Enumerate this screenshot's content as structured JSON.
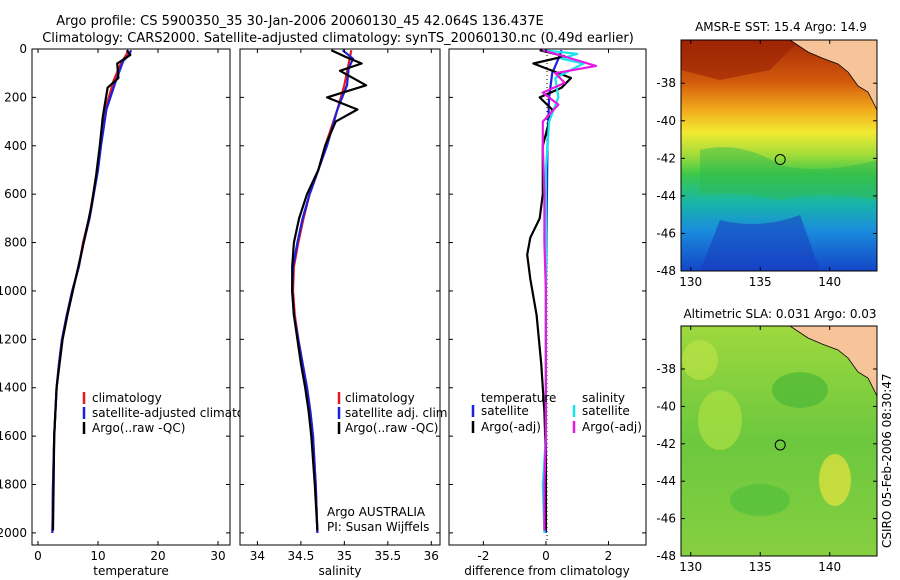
{
  "header": {
    "line1": "Argo profile: CS 5900350_35 30-Jan-2006 20060130_45 42.064S 136.437E",
    "line2": "Climatology: CARS2000. Satellite-adjusted climatology: synTS_20060130.nc (0.49d earlier)"
  },
  "side_text": "CSIRO 05-Feb-2006 08:30:47",
  "colors": {
    "climatology": "#e41a1c",
    "satellite": "#1f1fdf",
    "argo": "#000000",
    "sat_salinity": "#19e3ea",
    "argo_adj_salinity": "#e41ae4",
    "land": "#f7c49a"
  },
  "chart_data": [
    {
      "id": "temperature",
      "type": "line",
      "xlabel": "temperature",
      "xlim": [
        -1,
        32
      ],
      "ylim": [
        2050,
        0
      ],
      "xticks": [
        0,
        10,
        20,
        30
      ],
      "xtick_labels": [
        "0",
        "10",
        "20",
        "30"
      ],
      "yticks": [
        0,
        200,
        400,
        600,
        800,
        1000,
        1200,
        1400,
        1600,
        1800,
        2000
      ],
      "ytick_labels": [
        "0",
        "200",
        "400",
        "600",
        "800",
        "1000",
        "1200",
        "1400",
        "1600",
        "1800",
        "2000"
      ],
      "legend": [
        {
          "label": "climatology",
          "color": "#e41a1c"
        },
        {
          "label": "satellite-adjusted climatology",
          "color": "#1f1fdf"
        },
        {
          "label": "Argo(..raw -QC)",
          "color": "#000000"
        }
      ],
      "series": [
        {
          "name": "climatology",
          "color": "#e41a1c",
          "points": [
            [
              15.0,
              5
            ],
            [
              14.8,
              20
            ],
            [
              13.8,
              60
            ],
            [
              12.6,
              130
            ],
            [
              11.2,
              250
            ],
            [
              10.4,
              400
            ],
            [
              9.9,
              500
            ],
            [
              9.2,
              600
            ],
            [
              8.5,
              700
            ],
            [
              7.5,
              800
            ],
            [
              6.8,
              900
            ],
            [
              5.7,
              1000
            ],
            [
              4.8,
              1100
            ],
            [
              4.0,
              1200
            ],
            [
              3.5,
              1300
            ],
            [
              3.1,
              1400
            ],
            [
              2.9,
              1500
            ],
            [
              2.7,
              1600
            ],
            [
              2.5,
              1800
            ],
            [
              2.4,
              2000
            ]
          ]
        },
        {
          "name": "satellite-adjusted climatology",
          "color": "#1f1fdf",
          "points": [
            [
              15.5,
              5
            ],
            [
              15.3,
              20
            ],
            [
              14.2,
              50
            ],
            [
              13.0,
              130
            ],
            [
              11.4,
              250
            ],
            [
              10.5,
              400
            ],
            [
              10.0,
              500
            ],
            [
              9.3,
              600
            ],
            [
              8.6,
              700
            ],
            [
              7.6,
              800
            ],
            [
              6.8,
              900
            ],
            [
              5.7,
              1000
            ],
            [
              4.8,
              1100
            ],
            [
              4.0,
              1200
            ],
            [
              3.5,
              1300
            ],
            [
              3.1,
              1400
            ],
            [
              2.9,
              1500
            ],
            [
              2.7,
              1600
            ],
            [
              2.5,
              1800
            ],
            [
              2.4,
              2000
            ]
          ]
        },
        {
          "name": "Argo(..raw -QC)",
          "color": "#000000",
          "points": [
            [
              14.8,
              5
            ],
            [
              15.4,
              25
            ],
            [
              13.2,
              60
            ],
            [
              13.4,
              120
            ],
            [
              11.6,
              160
            ],
            [
              10.8,
              280
            ],
            [
              10.3,
              400
            ],
            [
              9.7,
              520
            ],
            [
              8.9,
              650
            ],
            [
              7.8,
              780
            ],
            [
              6.9,
              880
            ],
            [
              5.8,
              1000
            ],
            [
              4.9,
              1100
            ],
            [
              4.1,
              1200
            ],
            [
              3.6,
              1300
            ],
            [
              3.1,
              1400
            ],
            [
              2.9,
              1500
            ],
            [
              2.7,
              1600
            ],
            [
              2.6,
              1800
            ],
            [
              2.5,
              1990
            ]
          ]
        }
      ]
    },
    {
      "id": "salinity",
      "type": "line",
      "xlabel": "salinity",
      "xlim": [
        33.8,
        36.1
      ],
      "ylim": [
        2050,
        0
      ],
      "xticks": [
        34,
        34.5,
        35,
        35.5,
        36
      ],
      "xtick_labels": [
        "34",
        "34.5",
        "35",
        "35.5",
        "36"
      ],
      "yticks": [
        0,
        200,
        400,
        600,
        800,
        1000,
        1200,
        1400,
        1600,
        1800,
        2000
      ],
      "ytick_labels": [
        "",
        "",
        "",
        "",
        "",
        "",
        "",
        "",
        "",
        "",
        ""
      ],
      "legend": [
        {
          "label": "climatology",
          "color": "#e41a1c"
        },
        {
          "label": "satellite adj. clim.",
          "color": "#1f1fdf"
        },
        {
          "label": "Argo(..raw -QC)",
          "color": "#000000"
        }
      ],
      "annotation": {
        "line1": "Argo AUSTRALIA",
        "line2": "PI: Susan Wijffels"
      },
      "series": [
        {
          "name": "climatology",
          "color": "#e41a1c",
          "points": [
            [
              35.08,
              5
            ],
            [
              35.05,
              60
            ],
            [
              35.0,
              150
            ],
            [
              34.92,
              250
            ],
            [
              34.78,
              400
            ],
            [
              34.7,
              500
            ],
            [
              34.6,
              600
            ],
            [
              34.53,
              700
            ],
            [
              34.47,
              800
            ],
            [
              34.42,
              900
            ],
            [
              34.41,
              1000
            ],
            [
              34.43,
              1100
            ],
            [
              34.47,
              1200
            ],
            [
              34.52,
              1300
            ],
            [
              34.57,
              1400
            ],
            [
              34.61,
              1500
            ],
            [
              34.64,
              1600
            ],
            [
              34.67,
              1800
            ],
            [
              34.69,
              2000
            ]
          ]
        },
        {
          "name": "satellite adj. clim.",
          "color": "#1f1fdf",
          "points": [
            [
              34.98,
              5
            ],
            [
              35.1,
              40
            ],
            [
              35.05,
              80
            ],
            [
              35.03,
              150
            ],
            [
              34.92,
              250
            ],
            [
              34.8,
              400
            ],
            [
              34.7,
              500
            ],
            [
              34.6,
              600
            ],
            [
              34.52,
              700
            ],
            [
              34.46,
              800
            ],
            [
              34.41,
              900
            ],
            [
              34.4,
              1000
            ],
            [
              34.42,
              1100
            ],
            [
              34.47,
              1200
            ],
            [
              34.52,
              1300
            ],
            [
              34.57,
              1400
            ],
            [
              34.61,
              1500
            ],
            [
              34.64,
              1600
            ],
            [
              34.67,
              1800
            ],
            [
              34.69,
              2000
            ]
          ]
        },
        {
          "name": "Argo(..raw -QC)",
          "color": "#000000",
          "points": [
            [
              34.85,
              5
            ],
            [
              35.0,
              30
            ],
            [
              35.2,
              60
            ],
            [
              34.95,
              90
            ],
            [
              35.25,
              150
            ],
            [
              34.8,
              200
            ],
            [
              35.15,
              250
            ],
            [
              34.9,
              300
            ],
            [
              34.78,
              400
            ],
            [
              34.7,
              500
            ],
            [
              34.57,
              600
            ],
            [
              34.48,
              700
            ],
            [
              34.42,
              800
            ],
            [
              34.4,
              900
            ],
            [
              34.4,
              1000
            ],
            [
              34.42,
              1100
            ],
            [
              34.46,
              1200
            ],
            [
              34.5,
              1300
            ],
            [
              34.55,
              1400
            ],
            [
              34.59,
              1500
            ],
            [
              34.62,
              1600
            ],
            [
              34.66,
              1800
            ],
            [
              34.69,
              1990
            ]
          ]
        }
      ]
    },
    {
      "id": "difference",
      "type": "line",
      "xlabel": "difference from climatology",
      "xlim": [
        -3.1,
        3.2
      ],
      "ylim": [
        2050,
        0
      ],
      "xticks": [
        -2,
        0,
        2
      ],
      "xtick_labels": [
        "-2",
        "0",
        "2"
      ],
      "yticks": [
        0,
        200,
        400,
        600,
        800,
        1000,
        1200,
        1400,
        1600,
        1800,
        2000
      ],
      "ytick_labels": [
        "",
        "",
        "",
        "",
        "",
        "",
        "",
        "",
        "",
        "",
        ""
      ],
      "legend_left": {
        "title": "temperature",
        "items": [
          {
            "label": "satellite",
            "color": "#1f1fdf"
          },
          {
            "label": "Argo(-adj)",
            "color": "#000000"
          }
        ]
      },
      "legend_right": {
        "title": "salinity",
        "items": [
          {
            "label": "satellite",
            "color": "#19e3ea"
          },
          {
            "label": "Argo(-adj)",
            "color": "#e41ae4"
          }
        ]
      },
      "series": [
        {
          "name": "temperature satellite",
          "color": "#1f1fdf",
          "points": [
            [
              0.5,
              5
            ],
            [
              0.4,
              40
            ],
            [
              0.2,
              100
            ],
            [
              0.1,
              200
            ],
            [
              0.05,
              400
            ],
            [
              0.02,
              700
            ],
            [
              0.0,
              1000
            ],
            [
              0.0,
              2000
            ]
          ]
        },
        {
          "name": "temperature Argo(-adj)",
          "color": "#000000",
          "points": [
            [
              -0.2,
              5
            ],
            [
              0.6,
              30
            ],
            [
              -0.4,
              60
            ],
            [
              0.8,
              120
            ],
            [
              0.5,
              160
            ],
            [
              -0.2,
              200
            ],
            [
              0.2,
              250
            ],
            [
              -0.1,
              400
            ],
            [
              -0.1,
              500
            ],
            [
              -0.1,
              600
            ],
            [
              -0.2,
              700
            ],
            [
              -0.5,
              780
            ],
            [
              -0.6,
              850
            ],
            [
              -0.5,
              950
            ],
            [
              -0.3,
              1100
            ],
            [
              -0.15,
              1300
            ],
            [
              -0.05,
              1500
            ],
            [
              0.0,
              1700
            ],
            [
              0.0,
              1990
            ]
          ]
        },
        {
          "name": "salinity satellite",
          "color": "#19e3ea",
          "points": [
            [
              -0.1,
              5
            ],
            [
              1.0,
              20
            ],
            [
              0.5,
              40
            ],
            [
              1.2,
              60
            ],
            [
              0.3,
              120
            ],
            [
              0.4,
              200
            ],
            [
              0.1,
              300
            ],
            [
              0.0,
              500
            ],
            [
              0.0,
              1000
            ],
            [
              0.0,
              1600
            ],
            [
              -0.1,
              1800
            ],
            [
              -0.05,
              2000
            ]
          ]
        },
        {
          "name": "salinity Argo(-adj)",
          "color": "#e41ae4",
          "points": [
            [
              -0.1,
              5
            ],
            [
              0.7,
              35
            ],
            [
              1.6,
              70
            ],
            [
              0.3,
              100
            ],
            [
              0.6,
              140
            ],
            [
              -0.1,
              180
            ],
            [
              0.4,
              230
            ],
            [
              -0.1,
              300
            ],
            [
              -0.1,
              400
            ],
            [
              -0.05,
              600
            ],
            [
              -0.05,
              800
            ],
            [
              0.0,
              1000
            ],
            [
              0.0,
              1300
            ],
            [
              0.0,
              1600
            ],
            [
              -0.05,
              1800
            ],
            [
              -0.05,
              1990
            ]
          ]
        }
      ]
    },
    {
      "id": "sst_map",
      "type": "heatmap",
      "title": "AMSR-E SST: 15.4 Argo: 14.9",
      "xlim": [
        129.3,
        143.4
      ],
      "ylim": [
        -48.0,
        -35.7
      ],
      "xticks": [
        130,
        135,
        140
      ],
      "xtick_labels": [
        "130",
        "135",
        "140"
      ],
      "yticks": [
        -38,
        -40,
        -42,
        -44,
        -46,
        -48
      ],
      "ytick_labels": [
        "-38",
        "-40",
        "-42",
        "-44",
        "-46",
        "-48"
      ],
      "marker": {
        "lon": 136.437,
        "lat": -42.064
      }
    },
    {
      "id": "sla_map",
      "type": "heatmap",
      "title": "Altimetric SLA: 0.031 Argo: 0.03",
      "xlim": [
        129.3,
        143.4
      ],
      "ylim": [
        -48.0,
        -35.7
      ],
      "xticks": [
        130,
        135,
        140
      ],
      "xtick_labels": [
        "130",
        "135",
        "140"
      ],
      "yticks": [
        -38,
        -40,
        -42,
        -44,
        -46,
        -48
      ],
      "ytick_labels": [
        "-38",
        "-40",
        "-42",
        "-44",
        "-46",
        "-48"
      ],
      "marker": {
        "lon": 136.437,
        "lat": -42.064
      }
    }
  ]
}
